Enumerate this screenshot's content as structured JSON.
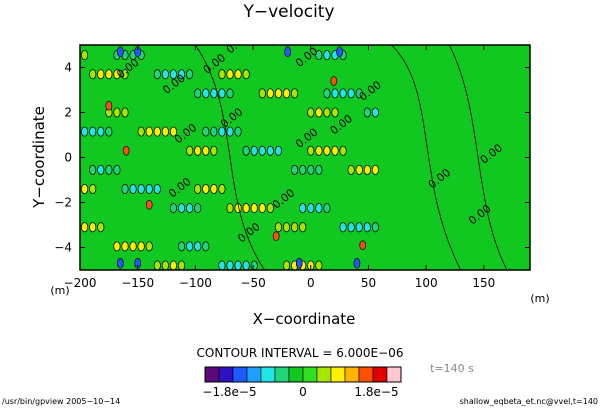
{
  "chart_data": {
    "type": "heatmap",
    "title": "Y−velocity",
    "xlabel": "X−coordinate",
    "ylabel": "Y−coordinate",
    "x_unit": "(m)",
    "y_unit": "(m)",
    "xlim": [
      -200,
      190
    ],
    "ylim": [
      -5,
      5
    ],
    "x_ticks": [
      -200,
      -150,
      -100,
      -50,
      0,
      50,
      100,
      150
    ],
    "x_tick_labels": [
      "−200",
      "−150",
      "−100",
      "−50",
      "0",
      "50",
      "100",
      "150"
    ],
    "y_ticks": [
      4,
      2,
      0,
      -2,
      -4
    ],
    "y_tick_labels": [
      "4",
      "2",
      "0",
      "−2",
      "−4"
    ],
    "contour_interval_text": "CONTOUR INTERVAL = 6.000E−06",
    "contour_label": "0.00",
    "time_label": "t=140 s",
    "colorbar": {
      "min": -2.4e-05,
      "max": 2.4e-05,
      "colors": [
        "#5a0a78",
        "#3010c0",
        "#1e5aff",
        "#1ea0ff",
        "#20e6e6",
        "#20d47a",
        "#10c820",
        "#30e020",
        "#a8e600",
        "#fff000",
        "#ffb400",
        "#ff5000",
        "#e00000",
        "#ffc8d2"
      ],
      "ticks": [
        -1.8e-05,
        0,
        1.8e-05
      ],
      "tick_labels": [
        "−1.8e−5",
        "0",
        "1.8e−5"
      ]
    }
  },
  "footer": {
    "left": "/usr/bin/gpview  2005−10−14",
    "right": "shallow_eqbeta_et.nc@vvel,t=140"
  }
}
